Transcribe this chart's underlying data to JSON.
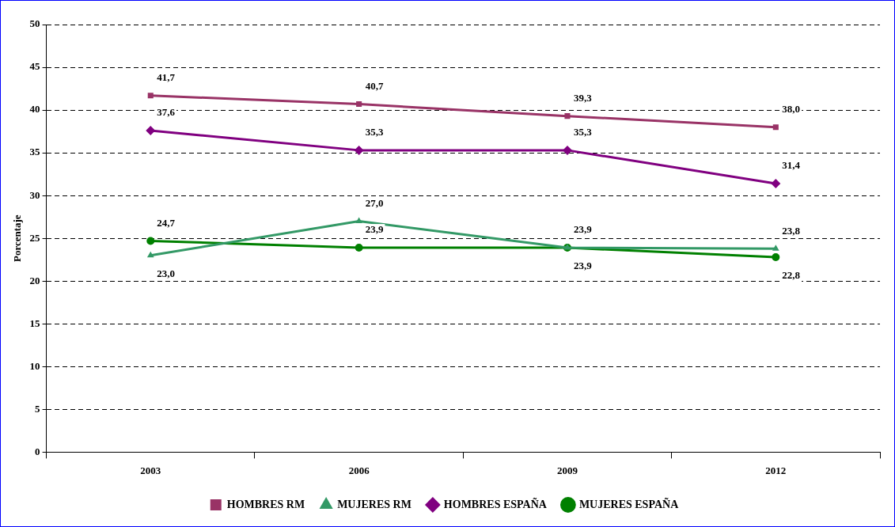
{
  "chart_data": {
    "type": "line",
    "ylabel": "Porcentaje",
    "categories": [
      "2003",
      "2006",
      "2009",
      "2012"
    ],
    "ylim": [
      0,
      50
    ],
    "yticks": [
      0,
      5,
      10,
      15,
      20,
      25,
      30,
      35,
      40,
      45,
      50
    ],
    "grid": "y",
    "legend": "bottom",
    "line_style": "solid",
    "series": [
      {
        "name": "HOMBRES RM",
        "color": "#993366",
        "marker": "square",
        "values": [
          41.7,
          40.7,
          39.3,
          38.0
        ],
        "value_labels": [
          "41,7",
          "40,7",
          "39,3",
          "38,0"
        ]
      },
      {
        "name": "MUJERES RM",
        "color": "#339966",
        "marker": "triangle",
        "values": [
          23.0,
          27.0,
          23.9,
          23.8
        ],
        "value_labels": [
          "23,0",
          "27,0",
          "23,9",
          "23,8"
        ]
      },
      {
        "name": "HOMBRES ESPAÑA",
        "color": "#800080",
        "marker": "diamond",
        "values": [
          37.6,
          35.3,
          35.3,
          31.4
        ],
        "value_labels": [
          "37,6",
          "35,3",
          "35,3",
          "31,4"
        ]
      },
      {
        "name": "MUJERES ESPAÑA",
        "color": "#008000",
        "marker": "circle",
        "values": [
          24.7,
          23.9,
          23.9,
          22.8
        ],
        "value_labels": [
          "24,7",
          "23,9",
          "23,9",
          "22,8"
        ]
      }
    ]
  }
}
